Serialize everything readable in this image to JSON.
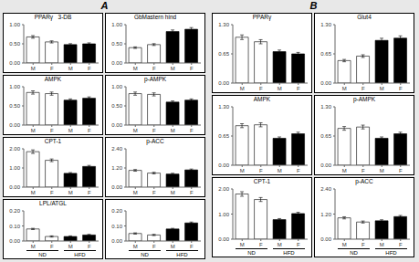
{
  "chart_data": [
    {
      "type": "bar",
      "panel": "A",
      "title": "PPARγ   3-DB",
      "categories": [
        "M",
        "F",
        "M",
        "F"
      ],
      "values": [
        0.68,
        0.55,
        0.48,
        0.5
      ],
      "errors": [
        0.034,
        0.0275,
        0.024,
        0.025
      ],
      "colors": [
        "white",
        "white",
        "black",
        "black"
      ],
      "ylim": [
        0.0,
        1.0
      ],
      "yticks": [
        {
          "value": 0,
          "label": "0.00"
        },
        {
          "value": 0.5,
          "label": "0.50"
        },
        {
          "value": 1,
          "label": "1.00"
        }
      ]
    },
    {
      "type": "bar",
      "panel": "A",
      "title": "GbMastern hind",
      "categories": [
        "M",
        "F",
        "M",
        "F"
      ],
      "values": [
        0.4,
        0.48,
        0.82,
        0.88
      ],
      "errors": [
        0.02,
        0.024,
        0.041,
        0.044
      ],
      "colors": [
        "white",
        "white",
        "black",
        "black"
      ],
      "ylim": [
        0.0,
        1.0
      ],
      "yticks": [
        {
          "value": 0,
          "label": "0.00"
        },
        {
          "value": 0.5,
          "label": "0.50"
        },
        {
          "value": 1,
          "label": "1.00"
        }
      ]
    },
    {
      "type": "bar",
      "panel": "A",
      "title": "AMPK",
      "categories": [
        "M",
        "F",
        "M",
        "F"
      ],
      "values": [
        0.85,
        0.82,
        0.65,
        0.7
      ],
      "errors": [
        0.0425,
        0.041,
        0.0325,
        0.035
      ],
      "colors": [
        "white",
        "white",
        "black",
        "black"
      ],
      "ylim": [
        0.0,
        1.0
      ],
      "yticks": [
        {
          "value": 0,
          "label": "0.00"
        },
        {
          "value": 0.5,
          "label": "0.50"
        },
        {
          "value": 1,
          "label": "1.00"
        }
      ]
    },
    {
      "type": "bar",
      "panel": "A",
      "title": "p-AMPK",
      "categories": [
        "M",
        "F",
        "M",
        "F"
      ],
      "values": [
        0.82,
        0.8,
        0.6,
        0.65
      ],
      "errors": [
        0.041,
        0.04,
        0.03,
        0.0325
      ],
      "colors": [
        "white",
        "white",
        "black",
        "black"
      ],
      "ylim": [
        0.0,
        1.0
      ],
      "yticks": [
        {
          "value": 0,
          "label": "0.00"
        },
        {
          "value": 0.5,
          "label": "0.50"
        },
        {
          "value": 1,
          "label": "1.00"
        }
      ]
    },
    {
      "type": "bar",
      "panel": "A",
      "title": "CPT-1",
      "categories": [
        "M",
        "F",
        "M",
        "F"
      ],
      "values": [
        1.85,
        1.4,
        0.72,
        1.08
      ],
      "errors": [
        0.0925,
        0.07,
        0.04,
        0.054
      ],
      "colors": [
        "white",
        "white",
        "black",
        "black"
      ],
      "ylim": [
        0.0,
        2.0
      ],
      "yticks": [
        {
          "value": 0,
          "label": "0.00"
        },
        {
          "value": 1,
          "label": "1.00"
        },
        {
          "value": 2,
          "label": "2.00"
        }
      ]
    },
    {
      "type": "bar",
      "panel": "A",
      "title": "p-ACC",
      "categories": [
        "M",
        "F",
        "M",
        "F"
      ],
      "values": [
        1.05,
        0.88,
        0.82,
        1.08
      ],
      "errors": [
        0.0525,
        0.048,
        0.048,
        0.054
      ],
      "colors": [
        "white",
        "white",
        "black",
        "black"
      ],
      "ylim": [
        0.0,
        2.4
      ],
      "yticks": [
        {
          "value": 0,
          "label": "0.00"
        },
        {
          "value": 1.2,
          "label": "1.20"
        },
        {
          "value": 2.4,
          "label": "2.40"
        }
      ]
    },
    {
      "type": "bar",
      "panel": "A",
      "title": "LPL/ATGL",
      "categories": [
        "M",
        "F",
        "M",
        "F"
      ],
      "values": [
        0.08,
        0.03,
        0.03,
        0.04
      ],
      "errors": [
        0.004,
        0.004,
        0.004,
        0.004
      ],
      "colors": [
        "white",
        "white",
        "black",
        "black"
      ],
      "ylim": [
        0.0,
        0.2
      ],
      "yticks": [
        {
          "value": 0,
          "label": "0.00"
        },
        {
          "value": 0.1,
          "label": "0.10"
        },
        {
          "value": 0.2,
          "label": "0.20"
        }
      ],
      "x_groups": [
        "ND",
        "HFD"
      ]
    },
    {
      "type": "bar",
      "panel": "A",
      "categories": [
        "M",
        "F",
        "M",
        "F"
      ],
      "values": [
        0.05,
        0.04,
        0.08,
        0.12
      ],
      "errors": [
        0.004,
        0.004,
        0.004,
        0.006
      ],
      "colors": [
        "white",
        "white",
        "black",
        "black"
      ],
      "ylim": [
        0.0,
        0.2
      ],
      "yticks": [
        {
          "value": 0,
          "label": "0.00"
        },
        {
          "value": 0.1,
          "label": "0.10"
        },
        {
          "value": 0.2,
          "label": "0.20"
        }
      ],
      "x_groups": [
        "ND",
        "HFD"
      ]
    },
    {
      "type": "bar",
      "panel": "B",
      "title": "PPARγ",
      "categories": [
        "M",
        "F",
        "M",
        "F"
      ],
      "values": [
        1.02,
        0.92,
        0.7,
        0.65
      ],
      "errors": [
        0.051,
        0.046,
        0.035,
        0.0325
      ],
      "colors": [
        "white",
        "white",
        "black",
        "black"
      ],
      "ylim": [
        0.0,
        1.3
      ],
      "yticks": [
        {
          "value": 0,
          "label": "0.00"
        },
        {
          "value": 0.65,
          "label": "0.65"
        },
        {
          "value": 1.3,
          "label": "1.30"
        }
      ]
    },
    {
      "type": "bar",
      "panel": "B",
      "title": "Glut4",
      "categories": [
        "M",
        "F",
        "M",
        "F"
      ],
      "values": [
        0.5,
        0.6,
        0.95,
        1.0
      ],
      "errors": [
        0.026,
        0.03,
        0.0475,
        0.05
      ],
      "colors": [
        "white",
        "white",
        "black",
        "black"
      ],
      "ylim": [
        0.0,
        1.3
      ],
      "yticks": [
        {
          "value": 0,
          "label": "0.00"
        },
        {
          "value": 0.65,
          "label": "0.65"
        },
        {
          "value": 1.3,
          "label": "1.30"
        }
      ]
    },
    {
      "type": "bar",
      "panel": "B",
      "title": "AMPK",
      "categories": [
        "M",
        "F",
        "M",
        "F"
      ],
      "values": [
        0.88,
        0.9,
        0.6,
        0.7
      ],
      "errors": [
        0.044,
        0.045,
        0.03,
        0.035
      ],
      "colors": [
        "white",
        "white",
        "black",
        "black"
      ],
      "ylim": [
        0.0,
        1.3
      ],
      "yticks": [
        {
          "value": 0,
          "label": "0.00"
        },
        {
          "value": 0.65,
          "label": "0.65"
        },
        {
          "value": 1.3,
          "label": "1.30"
        }
      ]
    },
    {
      "type": "bar",
      "panel": "B",
      "title": "p-AMPK",
      "categories": [
        "M",
        "F",
        "M",
        "F"
      ],
      "values": [
        0.82,
        0.85,
        0.6,
        0.7
      ],
      "errors": [
        0.041,
        0.0425,
        0.03,
        0.035
      ],
      "colors": [
        "white",
        "white",
        "black",
        "black"
      ],
      "ylim": [
        0.0,
        1.3
      ],
      "yticks": [
        {
          "value": 0,
          "label": "0.00"
        },
        {
          "value": 0.65,
          "label": "0.65"
        },
        {
          "value": 1.3,
          "label": "1.30"
        }
      ]
    },
    {
      "type": "bar",
      "panel": "B",
      "title": "CPT-1",
      "categories": [
        "M",
        "F",
        "M",
        "F"
      ],
      "values": [
        1.8,
        1.58,
        0.78,
        1.02
      ],
      "errors": [
        0.09,
        0.079,
        0.04,
        0.051
      ],
      "colors": [
        "white",
        "white",
        "black",
        "black"
      ],
      "ylim": [
        0.0,
        2.0
      ],
      "yticks": [
        {
          "value": 0,
          "label": "0.00"
        },
        {
          "value": 1,
          "label": "1.00"
        },
        {
          "value": 2,
          "label": "2.00"
        }
      ],
      "x_groups": [
        "ND",
        "HFD"
      ]
    },
    {
      "type": "bar",
      "panel": "B",
      "title": "p-ACC",
      "categories": [
        "M",
        "F",
        "M",
        "F"
      ],
      "values": [
        1.02,
        0.82,
        0.88,
        1.08
      ],
      "errors": [
        0.051,
        0.048,
        0.048,
        0.054
      ],
      "colors": [
        "white",
        "white",
        "black",
        "black"
      ],
      "ylim": [
        0.0,
        2.4
      ],
      "yticks": [
        {
          "value": 0,
          "label": "0.00"
        },
        {
          "value": 1.2,
          "label": "1.20"
        },
        {
          "value": 2.4,
          "label": "2.40"
        }
      ],
      "x_groups": [
        "ND",
        "HFD"
      ]
    }
  ]
}
